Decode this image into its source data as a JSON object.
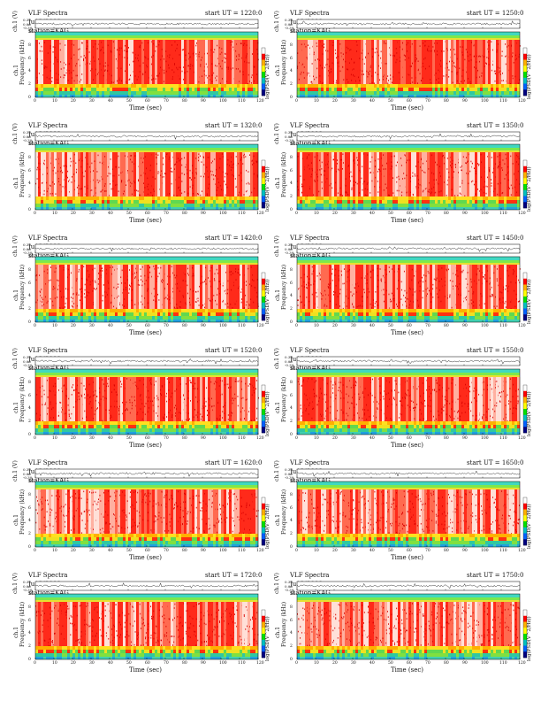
{
  "document": {
    "title_prefix": "VLF Spectra",
    "station": "station=KAG",
    "start_prefix": "start UT =",
    "panels": [
      {
        "date": "Ju12(2009",
        "start_ut": "1220:0"
      },
      {
        "date": "Ju12(2009",
        "start_ut": "1250:0"
      },
      {
        "date": "Ju12(2009",
        "start_ut": "1320:0"
      },
      {
        "date": "Ju12(2009",
        "start_ut": "1350:0"
      },
      {
        "date": "Ju12(2009",
        "start_ut": "1420:0"
      },
      {
        "date": "Ju12(2009",
        "start_ut": "1450:0"
      },
      {
        "date": "Ju12(2009",
        "start_ut": "1520:0"
      },
      {
        "date": "Ju12(2009",
        "start_ut": "1550:0"
      },
      {
        "date": "Ju12(2009",
        "start_ut": "1620:0"
      },
      {
        "date": "Ju12(2009",
        "start_ut": "1650:0"
      },
      {
        "date": "Ju12(2009",
        "start_ut": "1720:0"
      },
      {
        "date": "Ju12(2009",
        "start_ut": "1750:0"
      }
    ],
    "waveform_ylabel": "ch.1 (V)",
    "waveform_ticks": [
      "0.30",
      "0.00",
      "-0.30"
    ],
    "spec_ylabel_top": "ch.1",
    "spec_ylabel": "Frequency (kHz)",
    "freq_ticks": [
      "10",
      "8",
      "6",
      "4",
      "2",
      "0"
    ],
    "time_ticks": [
      "0",
      "10",
      "20",
      "30",
      "40",
      "50",
      "60",
      "70",
      "80",
      "90",
      "100",
      "110",
      "120"
    ],
    "xlabel": "Time (sec)",
    "cbar_label": "log(PSD(V^2/Hz))",
    "cbar_colors": [
      "#ffffff",
      "#ff0000",
      "#ffb000",
      "#ffff00",
      "#00e000",
      "#00c0c0",
      "#0060ff",
      "#000080"
    ]
  }
}
